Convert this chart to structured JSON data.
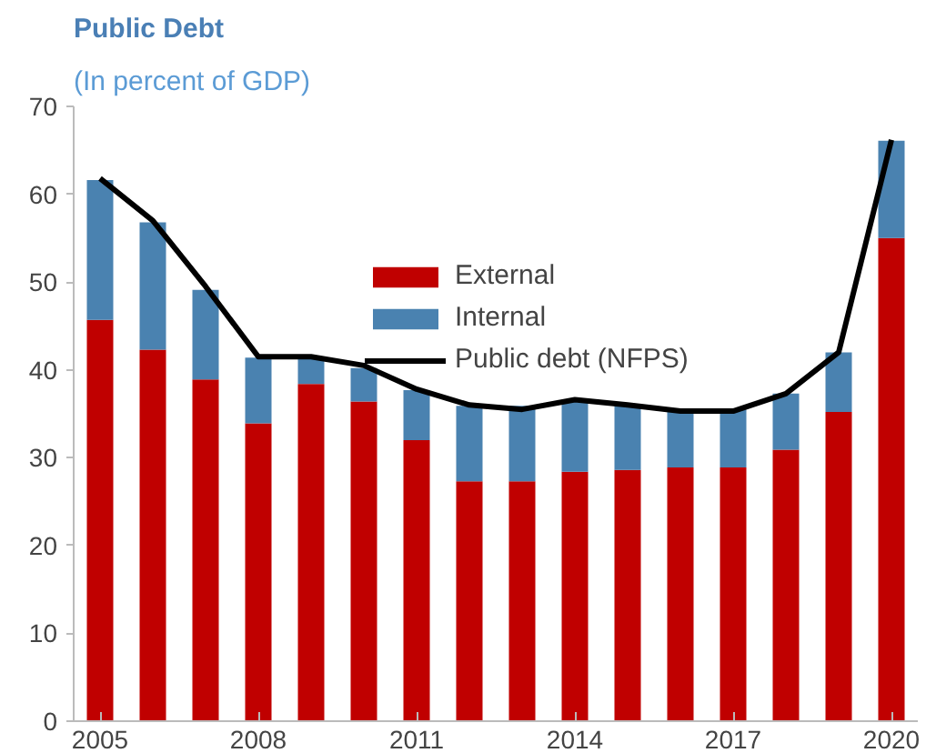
{
  "chart_data": {
    "type": "bar",
    "title": "Public Debt",
    "subtitle": "(In percent of GDP)",
    "stacked": true,
    "x": [
      2005,
      2006,
      2007,
      2008,
      2009,
      2010,
      2011,
      2012,
      2013,
      2014,
      2015,
      2016,
      2017,
      2018,
      2019,
      2020
    ],
    "series": [
      {
        "name": "External",
        "color": "#c00000",
        "values": [
          45.7,
          42.3,
          38.9,
          33.9,
          38.4,
          36.4,
          32.0,
          27.3,
          27.3,
          28.4,
          28.6,
          28.9,
          28.9,
          30.9,
          35.2,
          55.0
        ]
      },
      {
        "name": "Internal",
        "color": "#4a82b0",
        "values": [
          15.9,
          14.5,
          10.2,
          7.5,
          3.0,
          3.8,
          5.7,
          8.6,
          8.6,
          8.0,
          7.3,
          6.6,
          6.6,
          6.4,
          6.8,
          11.1
        ]
      },
      {
        "name": "Public debt (NFPS)",
        "type": "line",
        "color": "#000000",
        "values": [
          61.8,
          57.0,
          49.5,
          41.5,
          41.5,
          40.5,
          37.8,
          36.0,
          35.5,
          36.6,
          36.0,
          35.3,
          35.3,
          37.3,
          42.0,
          66.2
        ]
      }
    ],
    "xlim": [
      2004.5,
      2020.5
    ],
    "xticks": [
      2005,
      2008,
      2011,
      2014,
      2017,
      2020
    ],
    "ylim": [
      0,
      70
    ],
    "yticks": [
      0,
      10,
      20,
      30,
      40,
      50,
      60,
      70
    ],
    "grid": false,
    "legend": "top right",
    "marker": "none",
    "line_style": "solid"
  }
}
